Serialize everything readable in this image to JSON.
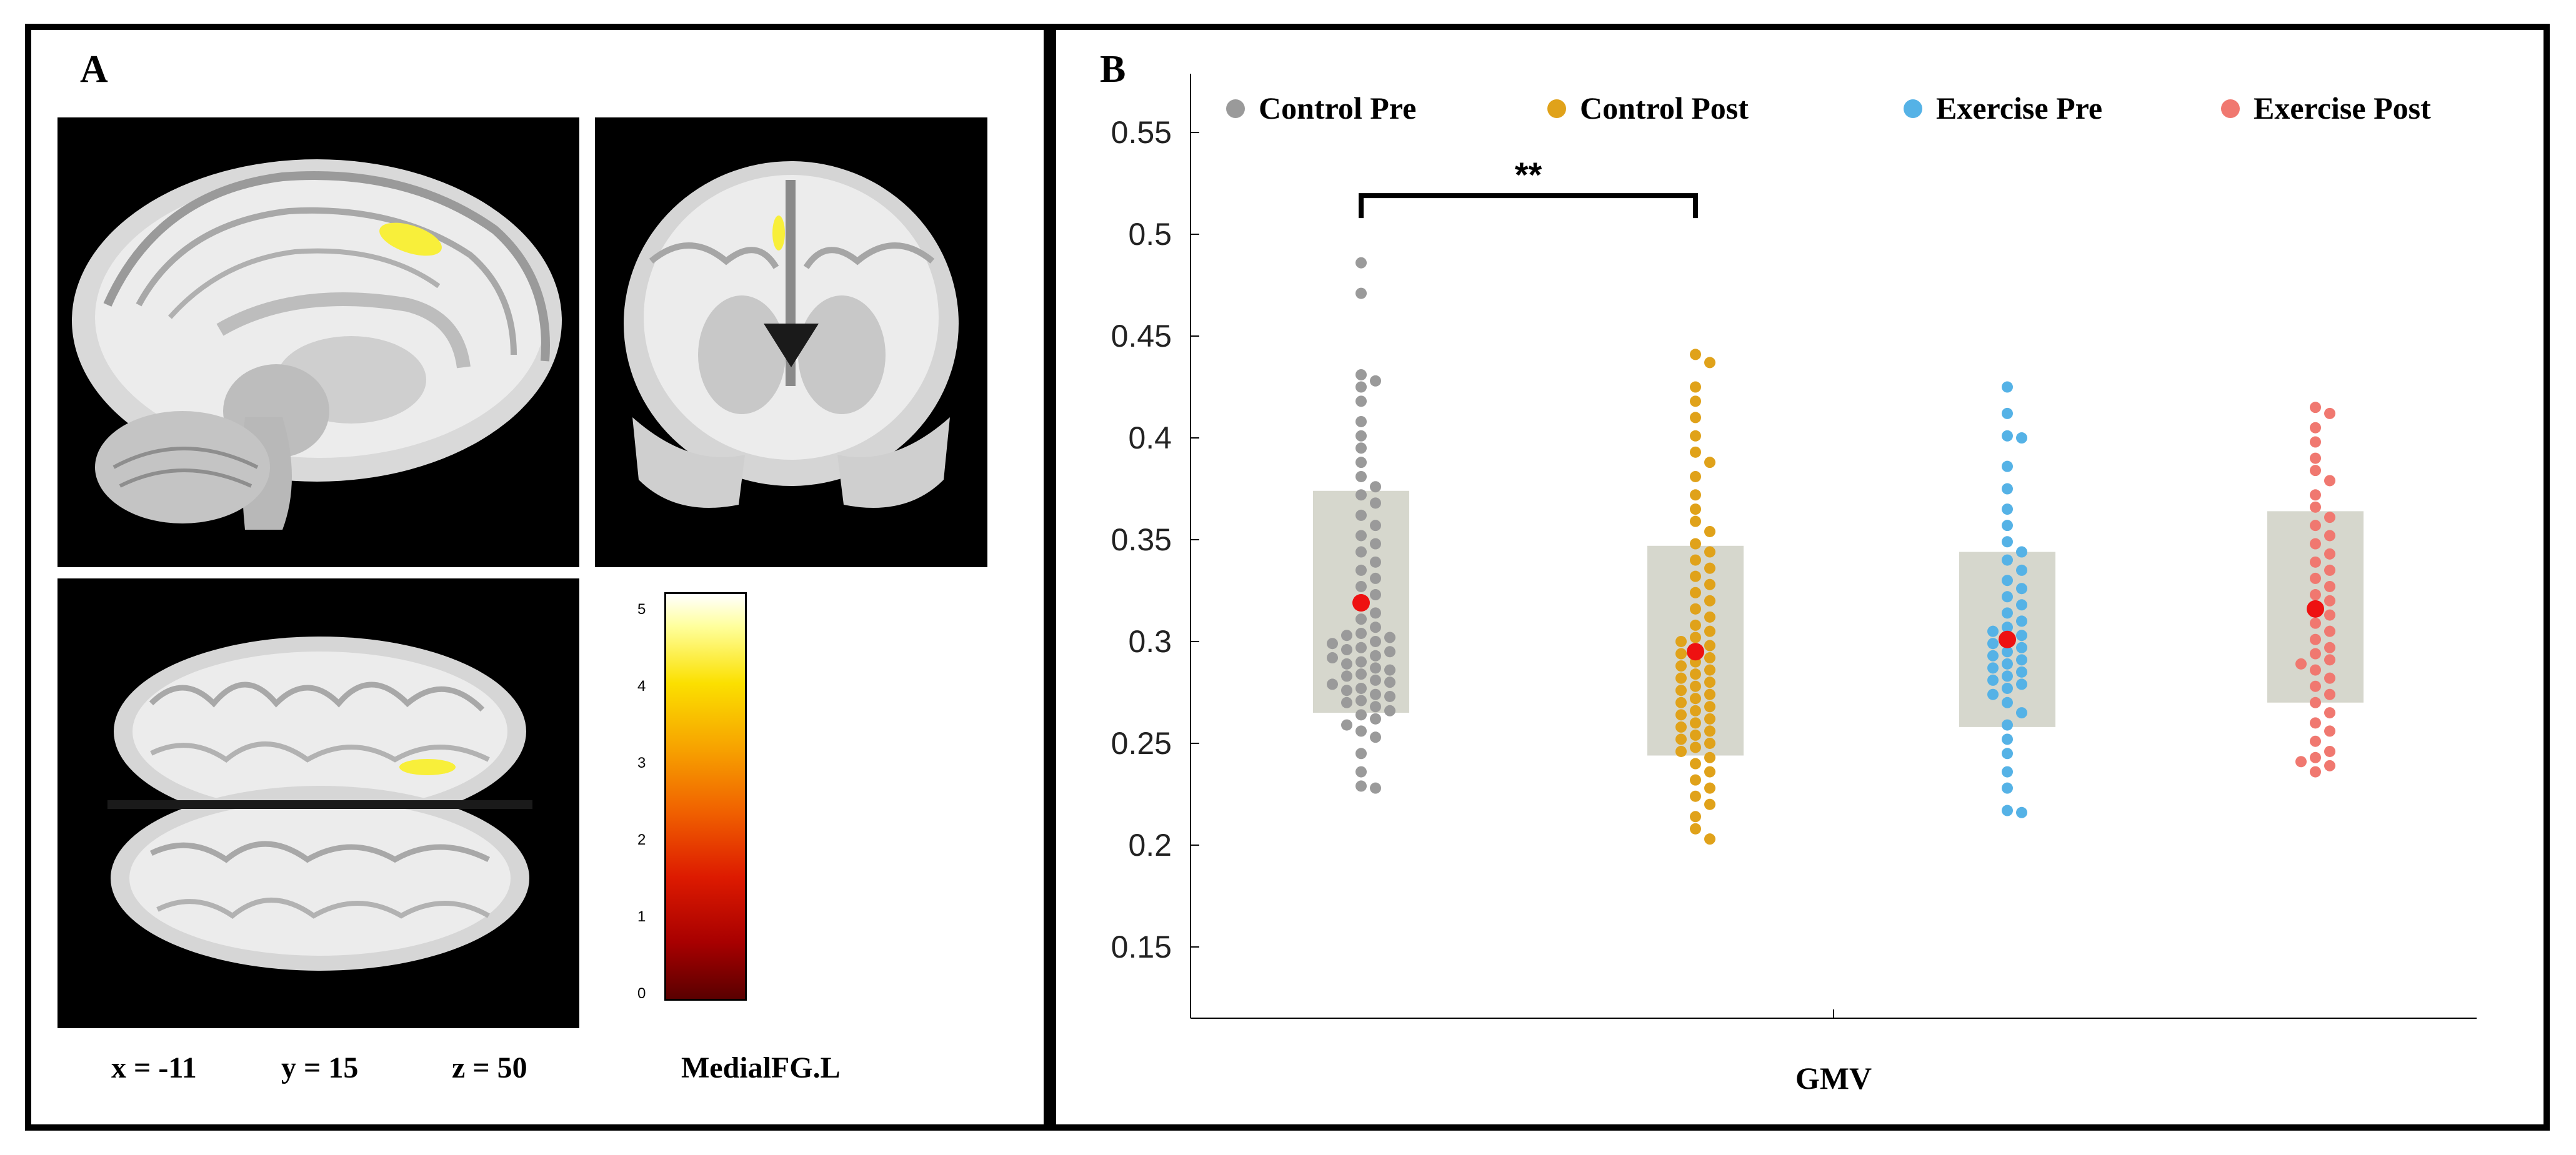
{
  "panel_a": {
    "label": "A",
    "coords": {
      "x": "x = -11",
      "y": "y = 15",
      "z": "z = 50"
    },
    "colorbar": {
      "label": "MedialFG.L",
      "ticks": [
        "0",
        "1",
        "2",
        "3",
        "4",
        "5"
      ],
      "min": 0,
      "max": 5.3
    }
  },
  "panel_b": {
    "label": "B"
  },
  "colors": {
    "control_pre": "#9a9a9a",
    "control_post": "#e0a21a",
    "exercise_pre": "#55b2e6",
    "exercise_post": "#f07870",
    "mean": "#ee1111",
    "box": "#d6d7cd",
    "highlight": "#f8ef3a"
  },
  "chart_data": {
    "type": "scatter",
    "title": "",
    "xlabel": "GMV",
    "ylabel": "",
    "ylim": [
      0.115,
      0.585
    ],
    "yticks": [
      "0.15",
      "0.2",
      "0.25",
      "0.3",
      "0.35",
      "0.4",
      "0.45",
      "0.5",
      "0.55"
    ],
    "significance": {
      "between": [
        "Control Pre",
        "Control Post"
      ],
      "label": "**",
      "y": 0.519
    },
    "series": [
      {
        "name": "Control Pre",
        "mean": 0.319,
        "box": [
          0.265,
          0.374
        ],
        "values": [
          0.486,
          0.471,
          0.431,
          0.428,
          0.425,
          0.418,
          0.408,
          0.401,
          0.395,
          0.388,
          0.381,
          0.376,
          0.372,
          0.368,
          0.362,
          0.357,
          0.352,
          0.348,
          0.344,
          0.339,
          0.335,
          0.331,
          0.327,
          0.323,
          0.318,
          0.314,
          0.311,
          0.307,
          0.304,
          0.303,
          0.302,
          0.3,
          0.299,
          0.297,
          0.296,
          0.295,
          0.293,
          0.292,
          0.29,
          0.289,
          0.287,
          0.286,
          0.284,
          0.283,
          0.281,
          0.28,
          0.279,
          0.277,
          0.276,
          0.274,
          0.273,
          0.271,
          0.27,
          0.268,
          0.266,
          0.264,
          0.262,
          0.259,
          0.256,
          0.253,
          0.245,
          0.236,
          0.229,
          0.228
        ]
      },
      {
        "name": "Control Post",
        "mean": 0.295,
        "box": [
          0.244,
          0.347
        ],
        "values": [
          0.441,
          0.437,
          0.425,
          0.418,
          0.41,
          0.401,
          0.393,
          0.388,
          0.381,
          0.372,
          0.365,
          0.359,
          0.354,
          0.348,
          0.344,
          0.34,
          0.336,
          0.332,
          0.328,
          0.324,
          0.32,
          0.316,
          0.312,
          0.308,
          0.305,
          0.302,
          0.3,
          0.298,
          0.296,
          0.294,
          0.292,
          0.29,
          0.288,
          0.286,
          0.284,
          0.282,
          0.28,
          0.278,
          0.276,
          0.274,
          0.272,
          0.27,
          0.268,
          0.266,
          0.264,
          0.262,
          0.26,
          0.258,
          0.256,
          0.254,
          0.252,
          0.25,
          0.248,
          0.246,
          0.243,
          0.24,
          0.236,
          0.232,
          0.228,
          0.224,
          0.22,
          0.214,
          0.208,
          0.203
        ]
      },
      {
        "name": "Exercise Pre",
        "mean": 0.301,
        "box": [
          0.258,
          0.344
        ],
        "values": [
          0.425,
          0.412,
          0.401,
          0.4,
          0.386,
          0.375,
          0.365,
          0.357,
          0.349,
          0.344,
          0.34,
          0.335,
          0.33,
          0.326,
          0.322,
          0.318,
          0.314,
          0.31,
          0.307,
          0.305,
          0.303,
          0.301,
          0.299,
          0.297,
          0.295,
          0.293,
          0.291,
          0.289,
          0.287,
          0.285,
          0.283,
          0.281,
          0.279,
          0.277,
          0.274,
          0.27,
          0.265,
          0.259,
          0.252,
          0.245,
          0.236,
          0.228,
          0.217,
          0.216
        ]
      },
      {
        "name": "Exercise Post",
        "mean": 0.316,
        "box": [
          0.27,
          0.364
        ],
        "values": [
          0.415,
          0.412,
          0.405,
          0.398,
          0.39,
          0.384,
          0.379,
          0.372,
          0.366,
          0.361,
          0.357,
          0.352,
          0.348,
          0.343,
          0.339,
          0.335,
          0.331,
          0.327,
          0.323,
          0.32,
          0.316,
          0.313,
          0.309,
          0.305,
          0.301,
          0.297,
          0.294,
          0.291,
          0.289,
          0.286,
          0.282,
          0.278,
          0.274,
          0.27,
          0.265,
          0.26,
          0.256,
          0.251,
          0.246,
          0.243,
          0.241,
          0.239,
          0.236
        ]
      }
    ]
  }
}
